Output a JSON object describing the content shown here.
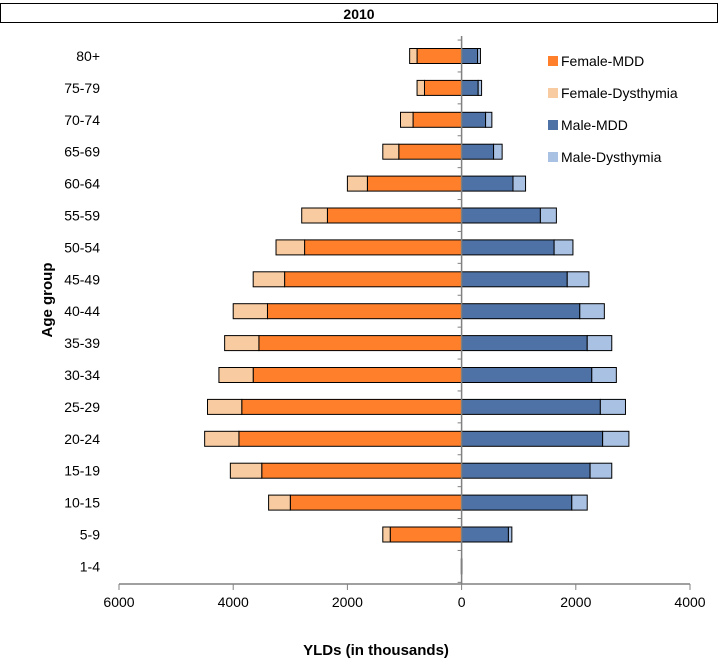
{
  "colors": {
    "female_mdd": "#FF7F2A",
    "female_dysthymia": "#F8CBA0",
    "male_mdd": "#4E72A5",
    "male_dysthymia": "#A9C1E3",
    "axis": "#808080"
  },
  "chart_data": {
    "type": "bar",
    "orientation": "horizontal",
    "layout": "population-pyramid",
    "title": "2010",
    "xlabel": "YLDs (in thousands)",
    "ylabel": "Age group",
    "xlim": [
      -6000,
      4000
    ],
    "xticks": [
      -6000,
      -4000,
      -2000,
      0,
      2000,
      4000
    ],
    "xtick_labels": [
      "6000",
      "4000",
      "2000",
      "0",
      "2000",
      "4000"
    ],
    "legend_position": "top-right",
    "categories": [
      "80+",
      "75-79",
      "70-74",
      "65-69",
      "60-64",
      "55-59",
      "50-54",
      "45-49",
      "40-44",
      "35-39",
      "30-34",
      "25-29",
      "20-24",
      "15-19",
      "10-15",
      "5-9",
      "1-4"
    ],
    "series": [
      {
        "name": "Female-MDD",
        "side": "left",
        "values": [
          780,
          650,
          850,
          1100,
          1650,
          2350,
          2750,
          3100,
          3400,
          3550,
          3650,
          3850,
          3900,
          3500,
          3000,
          1250,
          0
        ]
      },
      {
        "name": "Female-Dysthymia",
        "side": "left",
        "values": [
          130,
          130,
          220,
          280,
          350,
          450,
          500,
          550,
          600,
          600,
          600,
          600,
          600,
          550,
          380,
          130,
          5
        ]
      },
      {
        "name": "Male-MDD",
        "side": "right",
        "values": [
          280,
          290,
          420,
          560,
          900,
          1380,
          1620,
          1850,
          2070,
          2200,
          2280,
          2430,
          2470,
          2250,
          1930,
          820,
          5
        ]
      },
      {
        "name": "Male-Dysthymia",
        "side": "right",
        "values": [
          50,
          60,
          110,
          150,
          220,
          280,
          330,
          380,
          430,
          430,
          430,
          440,
          460,
          380,
          270,
          60,
          0
        ]
      }
    ]
  }
}
